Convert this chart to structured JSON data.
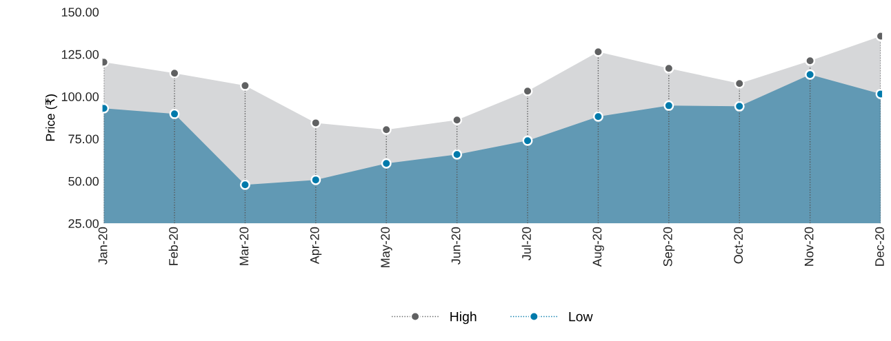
{
  "chart_data": {
    "type": "area",
    "ylabel": "Price (₹)",
    "categories": [
      "Jan-20",
      "Feb-20",
      "Mar-20",
      "Apr-20",
      "May-20",
      "Jun-20",
      "Jul-20",
      "Aug-20",
      "Sep-20",
      "Oct-20",
      "Nov-20",
      "Dec-20"
    ],
    "series": [
      {
        "name": "High",
        "color": "#d6d7d9",
        "values": [
          120.3,
          113.8,
          106.4,
          84.4,
          80.4,
          86.1,
          103.2,
          126.4,
          116.6,
          107.7,
          121.1,
          135.7
        ]
      },
      {
        "name": "Low",
        "color": "#6199b4",
        "values": [
          93.0,
          89.7,
          47.8,
          50.7,
          60.4,
          65.7,
          73.9,
          88.1,
          94.6,
          94.2,
          113.0,
          101.5
        ]
      }
    ],
    "ylim": [
      25,
      150
    ],
    "yticks": [
      {
        "value": 25,
        "label": "25.00"
      },
      {
        "value": 50,
        "label": "50.00"
      },
      {
        "value": 75,
        "label": "75.00"
      },
      {
        "value": 100,
        "label": "100.00"
      },
      {
        "value": 125,
        "label": "125.00"
      },
      {
        "value": 150,
        "label": "150.00"
      }
    ],
    "grid": "x",
    "marker": "circle",
    "line_style": "dotted",
    "legend": "bottom"
  }
}
